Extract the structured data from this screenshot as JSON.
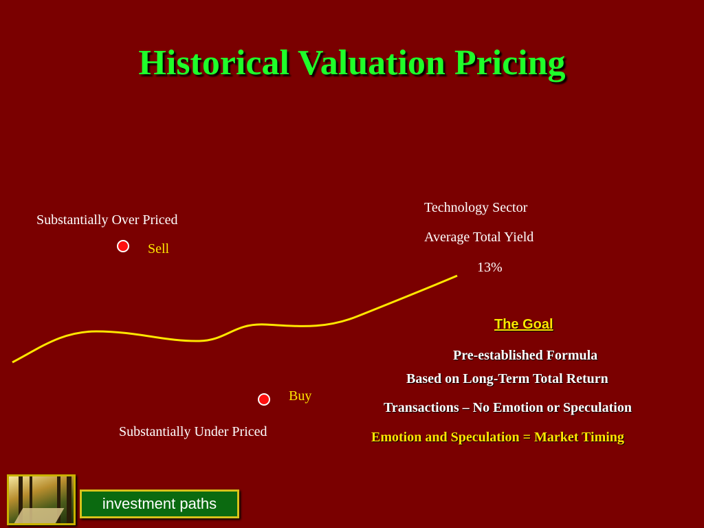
{
  "title": "Historical Valuation Pricing",
  "labels": {
    "over_priced": "Substantially Over Priced",
    "sell": "Sell",
    "buy": "Buy",
    "under_priced": "Substantially Under Priced",
    "tech_line1": "Technology Sector",
    "tech_line2": "Average Total Yield",
    "tech_value": "13%"
  },
  "goal": {
    "heading": "The Goal",
    "line1": "Pre-established Formula",
    "line2": "Based on Long-Term Total Return",
    "line3": "Transactions – No Emotion or Speculation",
    "line4": "Emotion  and  Speculation = Market Timing"
  },
  "footer": {
    "brand": "investment paths"
  },
  "colors": {
    "background": "#7a0000",
    "title": "#1fff2a",
    "accent": "#ffe600",
    "curve": "#ffe600",
    "marker": "#ff1010"
  }
}
